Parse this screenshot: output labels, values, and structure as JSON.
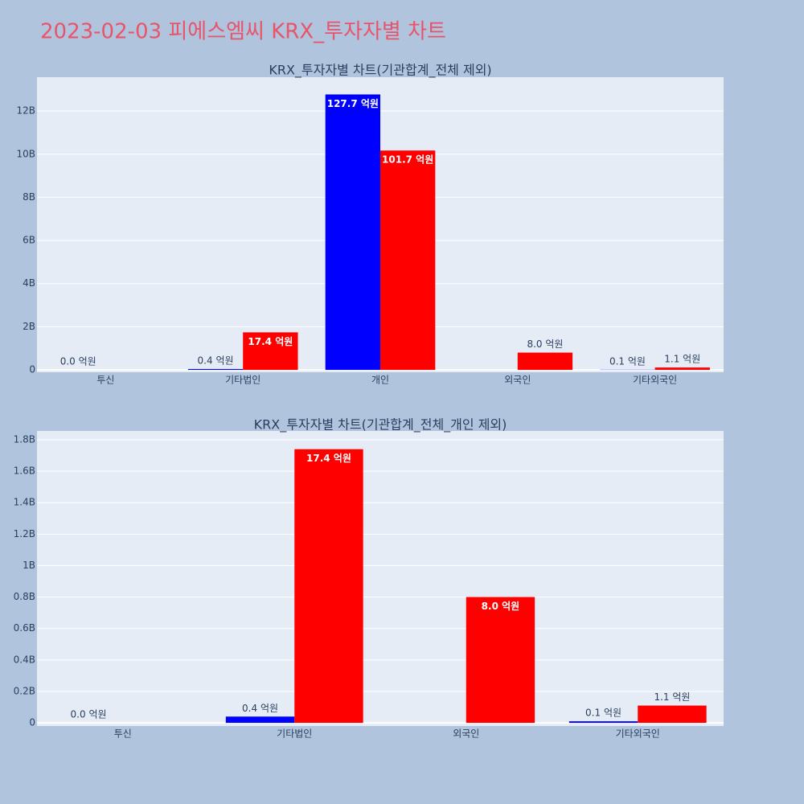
{
  "title": "2023-02-03 피에스엠씨 KRX_투자자별 차트",
  "chart_data": [
    {
      "type": "bar",
      "title": "KRX_투자자별 차트(기관합계_전체 제외)",
      "categories": [
        "투신",
        "기타법인",
        "개인",
        "외국인",
        "기타외국인"
      ],
      "series": [
        {
          "color": "#0000ff",
          "values": [
            0,
            40000000,
            12770000000,
            null,
            10000000
          ],
          "value_labels": [
            "0.0 억원",
            "0.4 억원",
            "127.7 억원",
            null,
            "0.1 억원"
          ]
        },
        {
          "color": "#ff0000",
          "values": [
            null,
            1740000000,
            10170000000,
            800000000,
            110000000
          ],
          "value_labels": [
            null,
            "17.4 억원",
            "101.7 억원",
            "8.0 억원",
            "1.1 억원"
          ]
        }
      ],
      "ylim": [
        -110000000,
        13570000000
      ],
      "yticks": [
        0,
        {
          "value": 2000000000,
          "label": "2B"
        },
        {
          "value": 4000000000,
          "label": "4B"
        },
        {
          "value": 6000000000,
          "label": "6B"
        },
        {
          "value": 8000000000,
          "label": "8B"
        },
        {
          "value": 10000000000,
          "label": "10B"
        },
        {
          "value": 12000000000,
          "label": "12B"
        }
      ],
      "grid": true
    },
    {
      "type": "bar",
      "title": "KRX_투자자별 차트(기관합계_전체_개인 제외)",
      "categories": [
        "투신",
        "기타법인",
        "외국인",
        "기타외국인"
      ],
      "series": [
        {
          "color": "#0000ff",
          "values": [
            0,
            40000000,
            null,
            10000000
          ],
          "value_labels": [
            "0.0 억원",
            "0.4 억원",
            null,
            "0.1 억원"
          ]
        },
        {
          "color": "#ff0000",
          "values": [
            null,
            1740000000,
            800000000,
            110000000
          ],
          "value_labels": [
            null,
            "17.4 억원",
            "8.0 억원",
            "1.1 억원"
          ]
        }
      ],
      "ylim": [
        -20000000,
        1856000000
      ],
      "yticks": [
        0,
        {
          "value": 200000000,
          "label": "0.2B"
        },
        {
          "value": 400000000,
          "label": "0.4B"
        },
        {
          "value": 600000000,
          "label": "0.6B"
        },
        {
          "value": 800000000,
          "label": "0.8B"
        },
        {
          "value": 1000000000,
          "label": "1B"
        },
        {
          "value": 1200000000,
          "label": "1.2B"
        },
        {
          "value": 1400000000,
          "label": "1.4B"
        },
        {
          "value": 1600000000,
          "label": "1.6B"
        },
        {
          "value": 1800000000,
          "label": "1.8B"
        }
      ],
      "grid": true
    }
  ]
}
